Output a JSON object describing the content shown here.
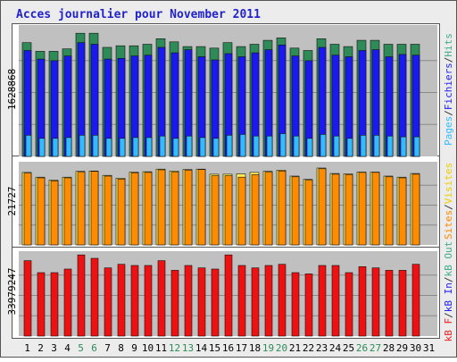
{
  "chart_data": {
    "title": "Acces journalier pour November 2011",
    "type": "bar",
    "x": [
      "1",
      "2",
      "3",
      "4",
      "5",
      "6",
      "7",
      "8",
      "9",
      "10",
      "11",
      "12",
      "13",
      "14",
      "15",
      "16",
      "17",
      "18",
      "19",
      "20",
      "21",
      "22",
      "23",
      "24",
      "25",
      "26",
      "27",
      "28",
      "29",
      "30",
      "31"
    ],
    "weekend_days": [
      "5",
      "6",
      "12",
      "13",
      "19",
      "20",
      "26",
      "27"
    ],
    "panels": [
      {
        "id": "hits",
        "max_label": "1628868",
        "legend": [
          "Pages",
          "/",
          "Fichiers",
          "/",
          "Hits"
        ],
        "legend_colors": [
          "#33bbff",
          "#333333",
          "#2222ee",
          "#333333",
          "#44aa88"
        ],
        "series": [
          {
            "name": "Hits",
            "color": "#2e8b57",
            "values": [
              1450000,
              1340000,
              1340000,
              1370000,
              1570000,
              1570000,
              1390000,
              1410000,
              1410000,
              1430000,
              1500000,
              1460000,
              1400000,
              1400000,
              1380000,
              1450000,
              1400000,
              1430000,
              1480000,
              1510000,
              1380000,
              1350000,
              1500000,
              1430000,
              1400000,
              1480000,
              1480000,
              1430000,
              1430000,
              1430000,
              null
            ]
          },
          {
            "name": "Fichiers",
            "color": "#1a1aee",
            "values": [
              1350000,
              1240000,
              1220000,
              1280000,
              1450000,
              1430000,
              1240000,
              1250000,
              1280000,
              1290000,
              1390000,
              1320000,
              1360000,
              1270000,
              1230000,
              1310000,
              1270000,
              1320000,
              1360000,
              1420000,
              1280000,
              1220000,
              1390000,
              1290000,
              1270000,
              1350000,
              1360000,
              1270000,
              1300000,
              1290000,
              null
            ]
          },
          {
            "name": "Pages",
            "color": "#33bbff",
            "values": [
              270000,
              230000,
              230000,
              240000,
              270000,
              270000,
              230000,
              230000,
              240000,
              240000,
              260000,
              230000,
              260000,
              240000,
              230000,
              270000,
              280000,
              260000,
              260000,
              290000,
              260000,
              230000,
              280000,
              260000,
              230000,
              270000,
              270000,
              260000,
              250000,
              250000,
              null
            ]
          }
        ]
      },
      {
        "id": "visits",
        "max_label": "21727",
        "legend": [
          "Sites",
          "/",
          "Visites"
        ],
        "legend_colors": [
          "#ff8800",
          "#333333",
          "#eecc00"
        ],
        "series": [
          {
            "name": "Visites",
            "color": "#ffee55",
            "values": [
              19800,
              18500,
              17700,
              18500,
              20100,
              20200,
              19000,
              18200,
              19900,
              20000,
              20700,
              20200,
              20600,
              20700,
              19300,
              19300,
              19400,
              19800,
              20100,
              20400,
              18800,
              17900,
              21000,
              19500,
              19400,
              19900,
              19900,
              18800,
              18500,
              19500,
              null
            ]
          },
          {
            "name": "Sites",
            "color": "#ff8c00",
            "values": [
              19600,
              18300,
              17500,
              18300,
              19900,
              20100,
              18800,
              18000,
              19700,
              19800,
              20500,
              19900,
              20400,
              20600,
              18900,
              18900,
              18500,
              19200,
              19900,
              20200,
              18600,
              17700,
              20800,
              19300,
              19200,
              19800,
              19800,
              18600,
              18300,
              19300,
              null
            ]
          }
        ]
      },
      {
        "id": "bandwidth",
        "max_label": "33979247",
        "legend": [
          "kB F",
          "/",
          "kB In",
          "/",
          "kB Out"
        ],
        "legend_colors": [
          "#ee2222",
          "#333333",
          "#2222ee",
          "#333333",
          "#44aa88"
        ],
        "series": [
          {
            "name": "kB F",
            "color": "#ee1111",
            "values": [
              31500000,
              26500000,
              26500000,
              28000000,
              33900000,
              32500000,
              28500000,
              30000000,
              29500000,
              29500000,
              31500000,
              27500000,
              29500000,
              28500000,
              28000000,
              33900000,
              29500000,
              28500000,
              29500000,
              30000000,
              26500000,
              26000000,
              29500000,
              29500000,
              26500000,
              29000000,
              28500000,
              27500000,
              27500000,
              30000000,
              null
            ]
          }
        ]
      }
    ]
  }
}
